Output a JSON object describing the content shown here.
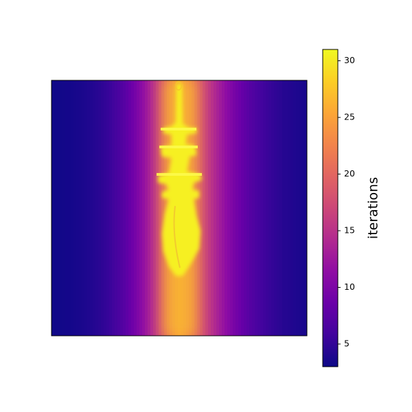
{
  "chart_data": {
    "type": "heatmap",
    "title": "",
    "xlabel": "",
    "ylabel": "",
    "colormap": "plasma",
    "colorbar": {
      "label": "iterations",
      "vmin": 3,
      "vmax": 31,
      "ticks": [
        5,
        10,
        15,
        20,
        25,
        30
      ],
      "tick_labels": [
        "5",
        "10",
        "15",
        "20",
        "25",
        "30"
      ],
      "placement": "right"
    },
    "axes_ticks_visible": false,
    "grid": false,
    "description_values": {
      "background_min": 3,
      "center_max": 31
    }
  }
}
